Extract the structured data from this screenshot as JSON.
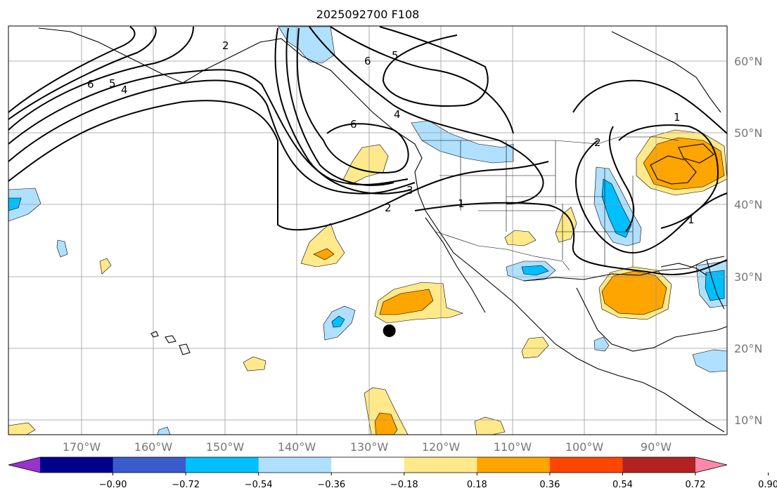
{
  "title": "2025092700 F108",
  "map": {
    "lon_range": [
      180,
      80
    ],
    "lat_range": [
      8,
      65
    ],
    "lat_labels": [
      "60°N",
      "50°N",
      "40°N",
      "30°N",
      "20°N",
      "10°N"
    ],
    "lon_labels": [
      "170°W",
      "160°W",
      "150°W",
      "140°W",
      "130°W",
      "120°W",
      "110°W",
      "100°W",
      "90°W"
    ],
    "grid": true,
    "contour_labels": [
      "6",
      "5",
      "4",
      "2",
      "6",
      "5",
      "6",
      "4",
      "3",
      "2",
      "1",
      "2",
      "1",
      "1"
    ],
    "marker": {
      "lon": -127,
      "lat": 22.5,
      "shape": "filled-circle"
    }
  },
  "colorbar": {
    "ticks": [
      "−0.90",
      "−0.72",
      "−0.54",
      "−0.36",
      "−0.18",
      "0.18",
      "0.36",
      "0.54",
      "0.72",
      "0.90"
    ],
    "colors": [
      "#9a32cd",
      "#00008b",
      "#3a5bcc",
      "#00bfff",
      "#b0e0ff",
      "#ffffff",
      "#ffe98a",
      "#ffa500",
      "#ff4500",
      "#b22222",
      "#ff88aa"
    ],
    "extend": "both"
  }
}
